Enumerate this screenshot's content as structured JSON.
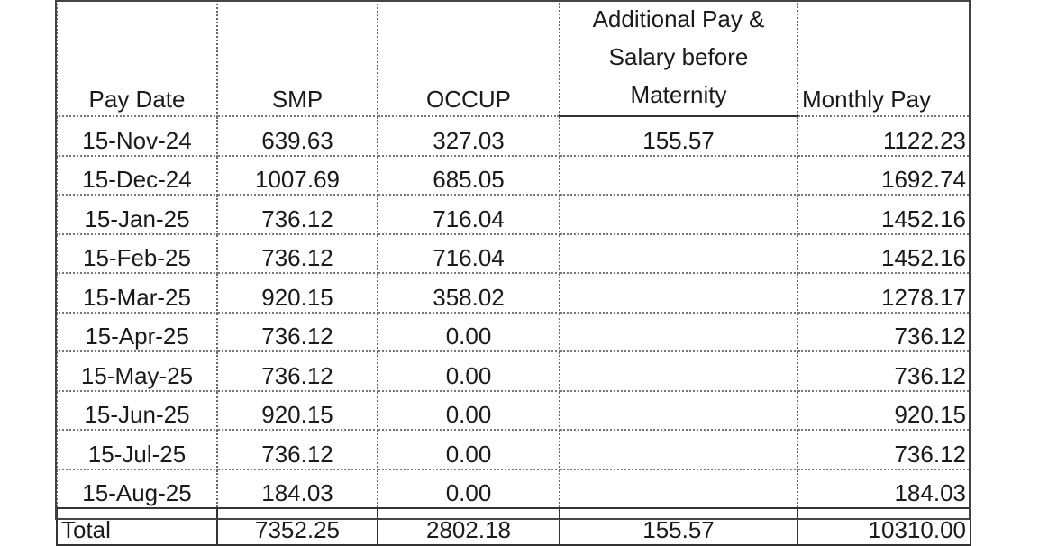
{
  "table": {
    "headers": [
      "Pay Date",
      "SMP",
      "OCCUP",
      "Additional Pay & Salary before Maternity",
      "Monthly Pay"
    ],
    "rows": [
      [
        "15-Nov-24",
        "639.63",
        "327.03",
        "155.57",
        "1122.23"
      ],
      [
        "15-Dec-24",
        "1007.69",
        "685.05",
        "",
        "1692.74"
      ],
      [
        "15-Jan-25",
        "736.12",
        "716.04",
        "",
        "1452.16"
      ],
      [
        "15-Feb-25",
        "736.12",
        "716.04",
        "",
        "1452.16"
      ],
      [
        "15-Mar-25",
        "920.15",
        "358.02",
        "",
        "1278.17"
      ],
      [
        "15-Apr-25",
        "736.12",
        "0.00",
        "",
        "736.12"
      ],
      [
        "15-May-25",
        "736.12",
        "0.00",
        "",
        "736.12"
      ],
      [
        "15-Jun-25",
        "920.15",
        "0.00",
        "",
        "920.15"
      ],
      [
        "15-Jul-25",
        "736.12",
        "0.00",
        "",
        "736.12"
      ],
      [
        "15-Aug-25",
        "184.03",
        "0.00",
        "",
        "184.03"
      ]
    ],
    "total": [
      "Total",
      "7352.25",
      "2802.18",
      "155.57",
      "10310.00"
    ]
  }
}
